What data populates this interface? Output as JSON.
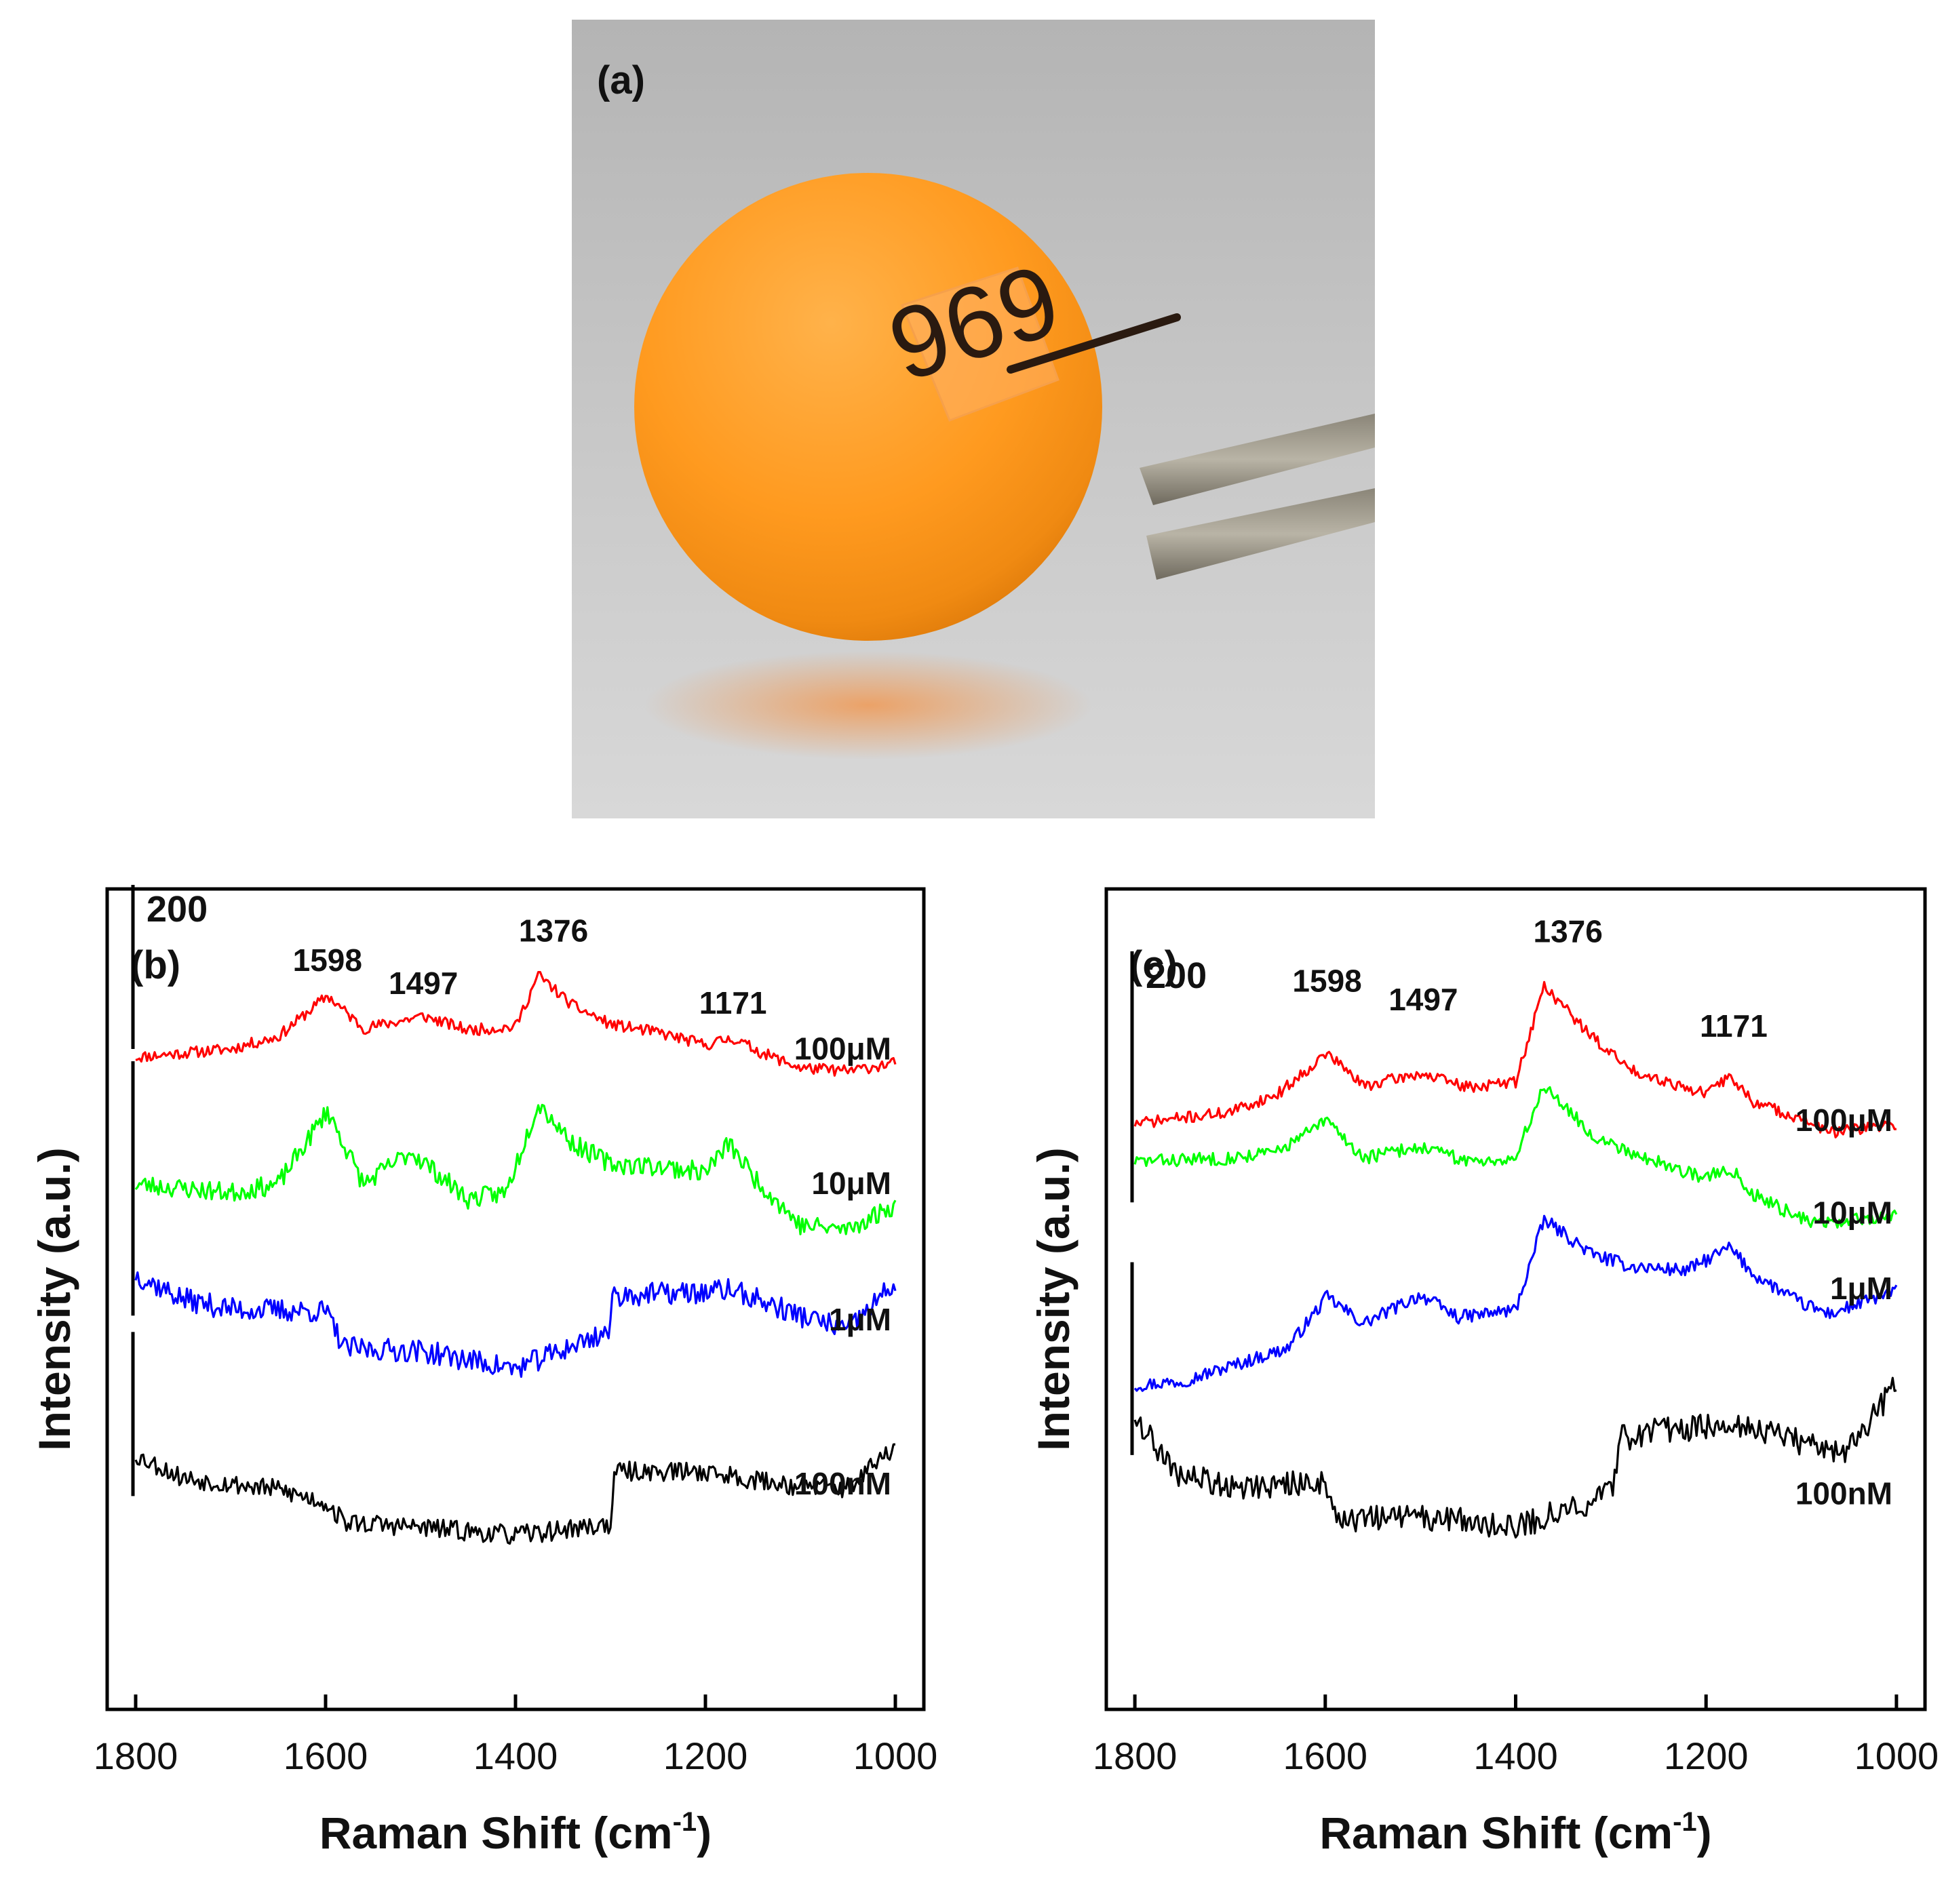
{
  "panel_a": {
    "label": "(a)",
    "photo_text": "969",
    "colors": {
      "background": "#bdbdbd",
      "ball": "#ff9a1f",
      "ink": "#2a1a10"
    }
  },
  "chart_data": [
    {
      "panel": "(b)",
      "type": "line",
      "xlabel": "Raman Shift (cm",
      "xlabel_sup": "-1",
      "xlabel_tail": ")",
      "ylabel": "Intensity (a.u.)",
      "xlim": [
        1830,
        970
      ],
      "x_reversed": true,
      "xticks": [
        1800,
        1600,
        1400,
        1200,
        1000
      ],
      "ylim": [
        0,
        1000
      ],
      "scale_bar": {
        "label": "200",
        "value": 200
      },
      "peak_labels": [
        {
          "text": "1598",
          "x": 1598,
          "y": 900
        },
        {
          "text": "1497",
          "x": 1497,
          "y": 872
        },
        {
          "text": "1376",
          "x": 1360,
          "y": 936
        },
        {
          "text": "1171",
          "x": 1171,
          "y": 848
        }
      ],
      "series": [
        {
          "name": "100μM",
          "color": "#ff0000",
          "noise": 7,
          "seed": 11,
          "points": [
            [
              1800,
              795
            ],
            [
              1700,
              805
            ],
            [
              1650,
              820
            ],
            [
              1598,
              870
            ],
            [
              1560,
              830
            ],
            [
              1497,
              845
            ],
            [
              1450,
              828
            ],
            [
              1400,
              832
            ],
            [
              1376,
              895
            ],
            [
              1340,
              858
            ],
            [
              1300,
              835
            ],
            [
              1250,
              825
            ],
            [
              1200,
              810
            ],
            [
              1171,
              818
            ],
            [
              1140,
              800
            ],
            [
              1100,
              782
            ],
            [
              1050,
              778
            ],
            [
              1000,
              788
            ]
          ]
        },
        {
          "name": "10μM",
          "color": "#00ff00",
          "noise": 12,
          "seed": 23,
          "points": [
            [
              1800,
              640
            ],
            [
              1700,
              630
            ],
            [
              1650,
              640
            ],
            [
              1598,
              730
            ],
            [
              1560,
              640
            ],
            [
              1510,
              680
            ],
            [
              1450,
              622
            ],
            [
              1410,
              630
            ],
            [
              1376,
              740
            ],
            [
              1340,
              690
            ],
            [
              1300,
              665
            ],
            [
              1250,
              662
            ],
            [
              1200,
              655
            ],
            [
              1175,
              690
            ],
            [
              1150,
              650
            ],
            [
              1100,
              590
            ],
            [
              1050,
              585
            ],
            [
              1000,
              615
            ]
          ]
        },
        {
          "name": "1μM",
          "color": "#0000ff",
          "noise": 14,
          "seed": 37,
          "points": [
            [
              1800,
              530
            ],
            [
              1750,
              500
            ],
            [
              1700,
              488
            ],
            [
              1600,
              485
            ],
            [
              1580,
              440
            ],
            [
              1500,
              437
            ],
            [
              1400,
              415
            ],
            [
              1300,
              462
            ],
            [
              1298,
              505
            ],
            [
              1200,
              508
            ],
            [
              1175,
              512
            ],
            [
              1100,
              480
            ],
            [
              1050,
              462
            ],
            [
              1000,
              520
            ]
          ]
        },
        {
          "name": "100nM",
          "color": "#000000",
          "noise": 12,
          "seed": 53,
          "points": [
            [
              1800,
              310
            ],
            [
              1750,
              282
            ],
            [
              1650,
              268
            ],
            [
              1600,
              252
            ],
            [
              1580,
              228
            ],
            [
              1500,
              222
            ],
            [
              1400,
              212
            ],
            [
              1300,
              226
            ],
            [
              1295,
              290
            ],
            [
              1200,
              290
            ],
            [
              1150,
              280
            ],
            [
              1100,
              272
            ],
            [
              1050,
              270
            ],
            [
              1000,
              320
            ]
          ]
        }
      ],
      "series_labels": [
        {
          "text": "100μM",
          "y": 792
        },
        {
          "text": "10μM",
          "y": 628
        },
        {
          "text": "1μM",
          "y": 462
        },
        {
          "text": "100nM",
          "y": 262
        }
      ]
    },
    {
      "panel": "(c)",
      "type": "line",
      "xlabel": "Raman Shift (cm",
      "xlabel_sup": "-1",
      "xlabel_tail": ")",
      "ylabel": "Intensity (a.u.)",
      "xlim": [
        1830,
        970
      ],
      "x_reversed": true,
      "xticks": [
        1800,
        1600,
        1400,
        1200,
        1000
      ],
      "ylim": [
        0,
        1000
      ],
      "scale_bar": {
        "label": "200",
        "value": 200
      },
      "peak_labels": [
        {
          "text": "1598",
          "x": 1598,
          "y": 875
        },
        {
          "text": "1497",
          "x": 1497,
          "y": 852
        },
        {
          "text": "1376",
          "x": 1345,
          "y": 935
        },
        {
          "text": "1171",
          "x": 1171,
          "y": 820
        }
      ],
      "series": [
        {
          "name": "100μM",
          "color": "#ff0000",
          "noise": 7,
          "seed": 71,
          "points": [
            [
              1800,
              714
            ],
            [
              1700,
              728
            ],
            [
              1650,
              750
            ],
            [
              1598,
              800
            ],
            [
              1560,
              760
            ],
            [
              1500,
              775
            ],
            [
              1450,
              758
            ],
            [
              1400,
              765
            ],
            [
              1370,
              882
            ],
            [
              1320,
              820
            ],
            [
              1280,
              780
            ],
            [
              1240,
              765
            ],
            [
              1200,
              750
            ],
            [
              1175,
              772
            ],
            [
              1150,
              740
            ],
            [
              1100,
              720
            ],
            [
              1070,
              703
            ],
            [
              1000,
              712
            ]
          ]
        },
        {
          "name": "10μM",
          "color": "#00ff00",
          "noise": 8,
          "seed": 83,
          "points": [
            [
              1800,
              668
            ],
            [
              1700,
              672
            ],
            [
              1650,
              680
            ],
            [
              1598,
              718
            ],
            [
              1560,
              672
            ],
            [
              1500,
              686
            ],
            [
              1450,
              668
            ],
            [
              1400,
              672
            ],
            [
              1370,
              762
            ],
            [
              1320,
              700
            ],
            [
              1280,
              680
            ],
            [
              1240,
              662
            ],
            [
              1200,
              648
            ],
            [
              1175,
              660
            ],
            [
              1150,
              628
            ],
            [
              1100,
              598
            ],
            [
              1070,
              592
            ],
            [
              1000,
              603
            ]
          ]
        },
        {
          "name": "1μM",
          "color": "#0000ff",
          "noise": 8,
          "seed": 97,
          "points": [
            [
              1800,
              395
            ],
            [
              1750,
              400
            ],
            [
              1700,
              418
            ],
            [
              1640,
              440
            ],
            [
              1598,
              503
            ],
            [
              1560,
              470
            ],
            [
              1500,
              505
            ],
            [
              1460,
              478
            ],
            [
              1400,
              487
            ],
            [
              1370,
              597
            ],
            [
              1320,
              555
            ],
            [
              1280,
              540
            ],
            [
              1220,
              535
            ],
            [
              1175,
              563
            ],
            [
              1150,
              530
            ],
            [
              1100,
              495
            ],
            [
              1070,
              482
            ],
            [
              1000,
              510
            ]
          ]
        },
        {
          "name": "100nM",
          "color": "#000000",
          "noise": 16,
          "seed": 109,
          "points": [
            [
              1800,
              360
            ],
            [
              1760,
              288
            ],
            [
              1700,
              272
            ],
            [
              1600,
              276
            ],
            [
              1585,
              230
            ],
            [
              1500,
              235
            ],
            [
              1400,
              222
            ],
            [
              1300,
              262
            ],
            [
              1290,
              330
            ],
            [
              1250,
              340
            ],
            [
              1200,
              345
            ],
            [
              1175,
              352
            ],
            [
              1100,
              325
            ],
            [
              1050,
              315
            ],
            [
              1000,
              395
            ]
          ]
        }
      ],
      "series_labels": [
        {
          "text": "100μM",
          "y": 705
        },
        {
          "text": "10μM",
          "y": 592
        },
        {
          "text": "1μM",
          "y": 500
        },
        {
          "text": "100nM",
          "y": 250
        }
      ]
    }
  ]
}
